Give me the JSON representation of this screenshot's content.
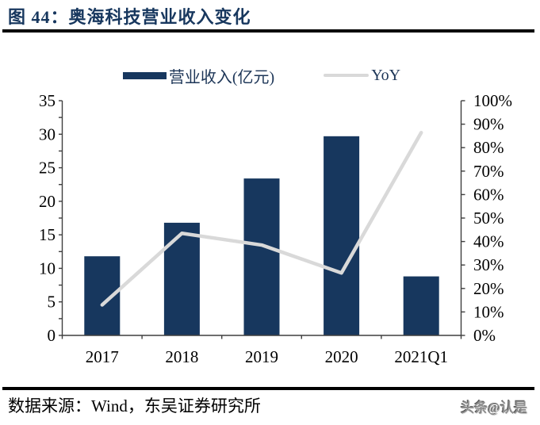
{
  "title": "图 44：奥海科技营业收入变化",
  "legend": {
    "bar_label": "营业收入(亿元)",
    "line_label": "YoY"
  },
  "footer": {
    "source": "数据来源：Wind，东吴证券研究所",
    "watermark": "头条@认是"
  },
  "colors": {
    "bar_navy": "#17375E",
    "line_gray": "#D9D9D9",
    "axis_stroke": "#3f3f3f",
    "tick_label": "#000000",
    "title_navy": "#17375E",
    "rule_black": "#000000"
  },
  "chart_data": {
    "type": "bar",
    "title": "",
    "categories": [
      "2017",
      "2018",
      "2019",
      "2020",
      "2021Q1"
    ],
    "series": [
      {
        "name": "营业收入(亿元)",
        "type": "bar",
        "axis": "left",
        "values": [
          11.8,
          16.8,
          23.4,
          29.7,
          8.8
        ]
      },
      {
        "name": "YoY",
        "type": "line",
        "axis": "right",
        "values": [
          13,
          43.5,
          38.5,
          26.6,
          86.4
        ]
      }
    ],
    "left_axis": {
      "min": 0,
      "max": 35,
      "step": 5,
      "minor_step": 2.5,
      "tick_labels": [
        "0",
        "5",
        "10",
        "15",
        "20",
        "25",
        "30",
        "35"
      ]
    },
    "right_axis": {
      "min": 0,
      "max": 100,
      "step": 10,
      "tick_labels": [
        "0%",
        "10%",
        "20%",
        "30%",
        "40%",
        "50%",
        "60%",
        "70%",
        "80%",
        "90%",
        "100%"
      ]
    },
    "grid": false,
    "legend_position": "top"
  }
}
